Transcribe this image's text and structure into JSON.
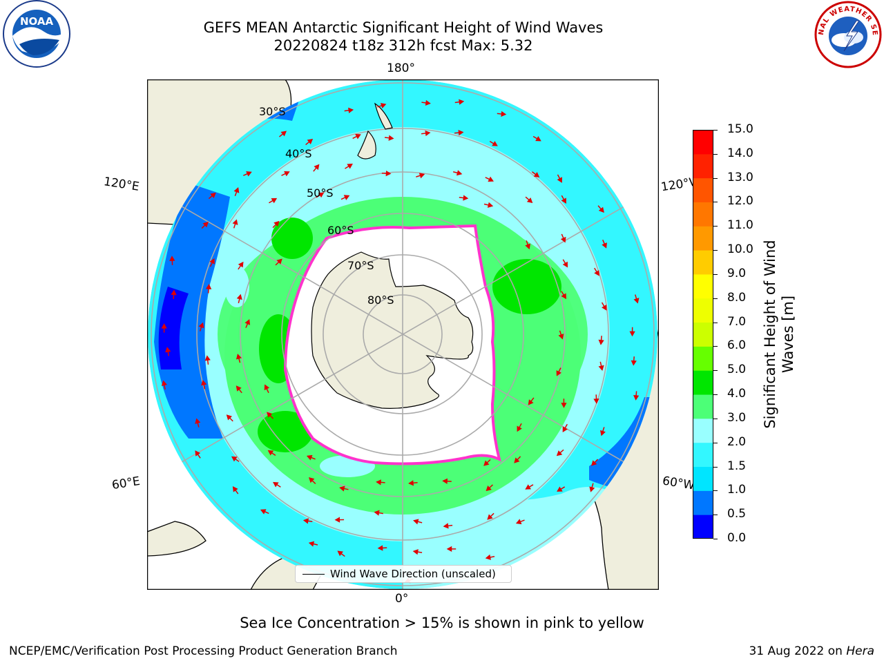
{
  "title": {
    "line1": "GEFS MEAN Antarctic Significant Height of Wind Waves",
    "line2": "20220824 t18z 312h fcst   Max: 5.32"
  },
  "logos": {
    "left": "NOAA",
    "right": "NATIONAL WEATHER SERVICE"
  },
  "map": {
    "projection": "south-polar-stereographic",
    "lon_labels": {
      "top": "180°",
      "bottom": "0°",
      "left_upper": "120°E",
      "right_upper": "120°W",
      "left_lower": "60°E",
      "right_lower": "60°W"
    },
    "lat_labels": [
      "30°S",
      "40°S",
      "50°S",
      "60°S",
      "70°S",
      "80°S"
    ],
    "colors": {
      "land": "#efeedd",
      "ocean_outside": "#ffffff",
      "sea_ice_edge": "#ff33cc",
      "arrows": "#e00000"
    }
  },
  "colorbar": {
    "label": "Significant Height of Wind Waves [m]",
    "ticks": [
      "0.0",
      "0.5",
      "1.0",
      "1.5",
      "2.0",
      "3.0",
      "4.0",
      "5.0",
      "6.0",
      "7.0",
      "8.0",
      "9.0",
      "10.0",
      "11.0",
      "12.0",
      "13.0",
      "14.0",
      "15.0"
    ],
    "colors": [
      "#0000ff",
      "#0077ff",
      "#00e5ff",
      "#33f7ff",
      "#99ffff",
      "#4cff77",
      "#00e600",
      "#66ff00",
      "#ccff00",
      "#eeff00",
      "#ffff00",
      "#ffcc00",
      "#ff9900",
      "#ff7700",
      "#ff5500",
      "#ff2200",
      "#ff0000"
    ]
  },
  "legend": {
    "label": "Wind Wave Direction (unscaled)"
  },
  "note": "Sea Ice Concentration > 15% is shown in pink to yellow",
  "footer": {
    "left": "NCEP/EMC/Verification Post Processing Product Generation Branch",
    "right_date": "31 Aug 2022 on ",
    "right_host": "Hera"
  }
}
